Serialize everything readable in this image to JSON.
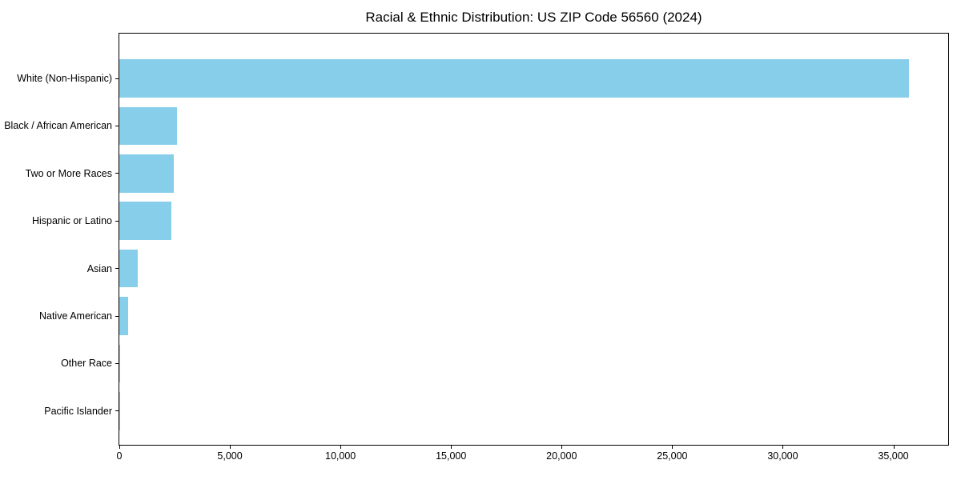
{
  "figure": {
    "background": "#ffffff",
    "text_color": "#000000",
    "spine_color": "#000000"
  },
  "chart_data": {
    "type": "bar",
    "orientation": "horizontal",
    "title": "Racial & Ethnic Distribution: US ZIP Code 56560 (2024)",
    "categories": [
      "White (Non-Hispanic)",
      "Black / African American",
      "Two or More Races",
      "Hispanic or Latino",
      "Asian",
      "Native American",
      "Other Race",
      "Pacific Islander"
    ],
    "values": [
      35700,
      2590,
      2450,
      2370,
      850,
      390,
      40,
      10
    ],
    "bar_color": "#87CEEB",
    "xlabel": "",
    "ylabel": "",
    "xlim": [
      0,
      37480
    ],
    "xticks": [
      0,
      5000,
      10000,
      15000,
      20000,
      25000,
      30000,
      35000
    ],
    "xtick_labels": [
      "0",
      "5,000",
      "10,000",
      "15,000",
      "20,000",
      "25,000",
      "30,000",
      "35,000"
    ],
    "grid": false,
    "legend": "none"
  }
}
